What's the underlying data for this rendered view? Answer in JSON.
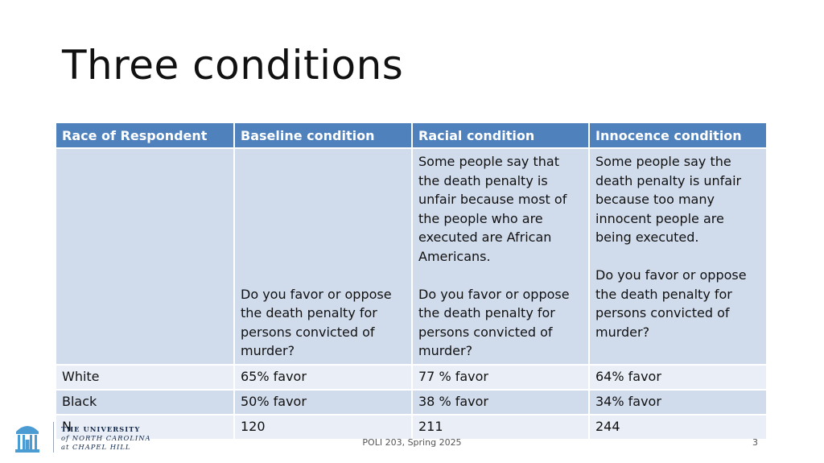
{
  "slide": {
    "title": "Three conditions",
    "footer_text": "POLI 203, Spring 2025",
    "page_number": "3"
  },
  "logo": {
    "line1": "THE UNIVERSITY",
    "line2": "of NORTH CAROLINA",
    "line3": "at CHAPEL HILL",
    "icon": "old-well-icon",
    "color": "#13294b"
  },
  "table": {
    "headers": [
      "Race of Respondent",
      "Baseline condition",
      "Racial condition",
      "Innocence condition"
    ],
    "condition_row": {
      "c0": "",
      "c1": "Do you favor or oppose the death penalty for persons convicted of murder?",
      "c2_top": "Some people say that the death penalty is unfair because most of the people who are executed are African Americans.",
      "c2_bottom": "Do you favor or oppose the death penalty for persons convicted of murder?",
      "c3_top": "Some people say the death penalty is unfair because too many innocent people are being executed.",
      "c3_bottom": "Do you favor or oppose the death penalty for persons convicted of murder?"
    },
    "rows": [
      [
        "White",
        "65% favor",
        "77 % favor",
        "64% favor"
      ],
      [
        "Black",
        "50% favor",
        "38 % favor",
        "34% favor"
      ],
      [
        "N",
        "120",
        "211",
        "244"
      ]
    ],
    "colors": {
      "header": "#4f81bd",
      "row_dark": "#d0dbec",
      "row_light": "#e9eef7"
    }
  }
}
